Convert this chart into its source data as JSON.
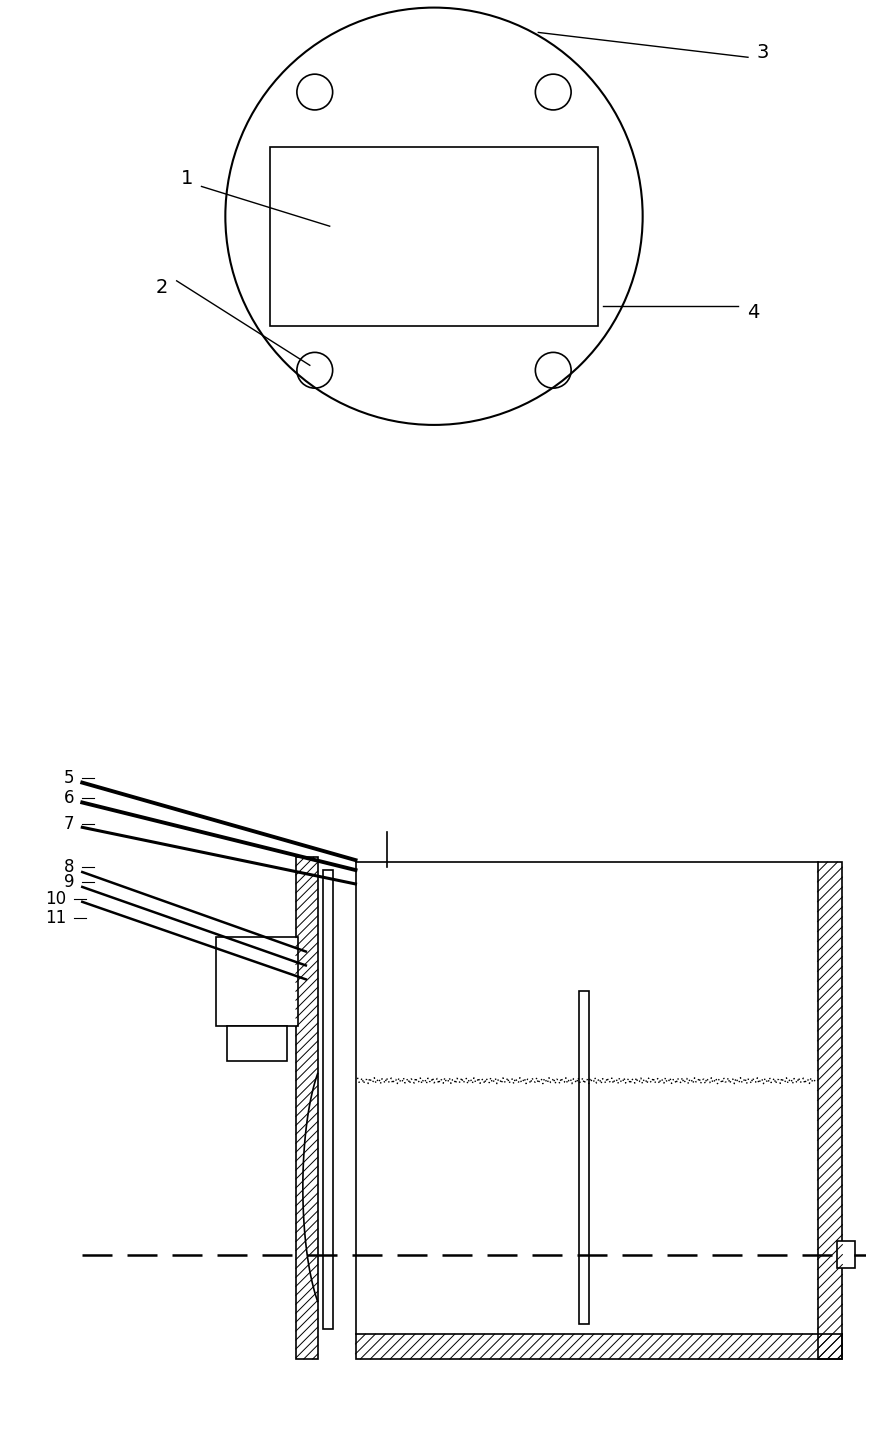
{
  "bg_color": "#ffffff",
  "line_color": "#000000",
  "fig_width": 8.69,
  "fig_height": 14.43
}
